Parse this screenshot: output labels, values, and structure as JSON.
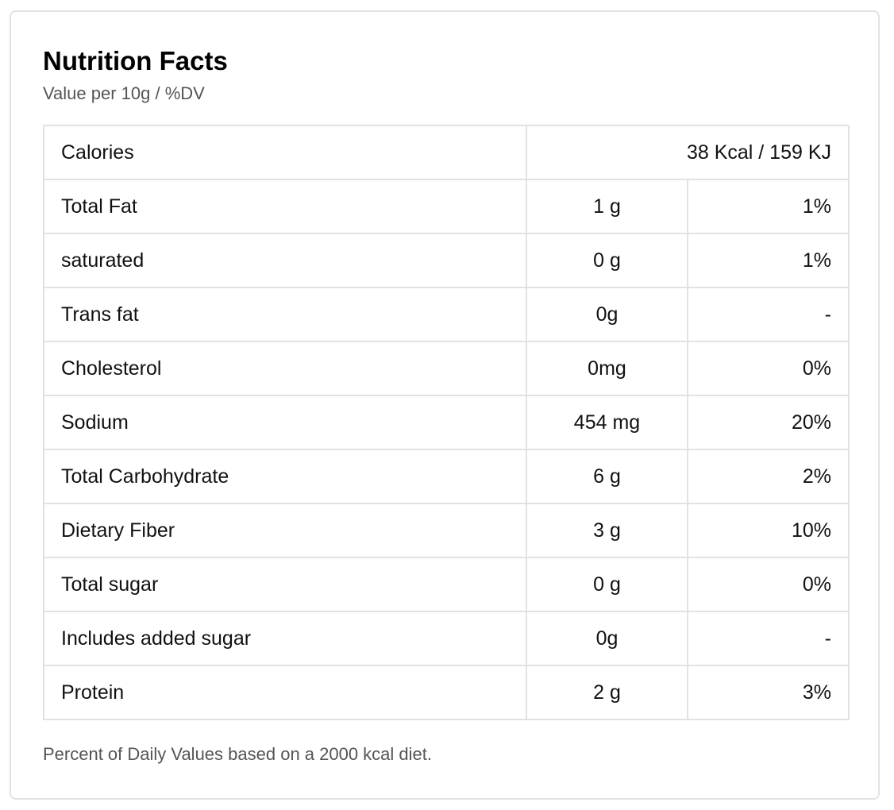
{
  "header": {
    "title": "Nutrition Facts",
    "subtitle": "Value per 10g / %DV"
  },
  "calories": {
    "label": "Calories",
    "value": "38 Kcal / 159 KJ"
  },
  "nutrients": [
    {
      "name": "Total Fat",
      "amount": "1 g",
      "dv": "1%"
    },
    {
      "name": "saturated",
      "amount": "0 g",
      "dv": "1%"
    },
    {
      "name": "Trans fat",
      "amount": "0g",
      "dv": "-"
    },
    {
      "name": "Cholesterol",
      "amount": "0mg",
      "dv": "0%"
    },
    {
      "name": "Sodium",
      "amount": "454 mg",
      "dv": "20%"
    },
    {
      "name": "Total Carbohydrate",
      "amount": "6 g",
      "dv": "2%"
    },
    {
      "name": "Dietary Fiber",
      "amount": "3 g",
      "dv": "10%"
    },
    {
      "name": "Total sugar",
      "amount": "0 g",
      "dv": "0%"
    },
    {
      "name": "Includes added sugar",
      "amount": "0g",
      "dv": "-"
    },
    {
      "name": "Protein",
      "amount": "2 g",
      "dv": "3%"
    }
  ],
  "footnote": "Percent of Daily Values based on a 2000 kcal diet."
}
